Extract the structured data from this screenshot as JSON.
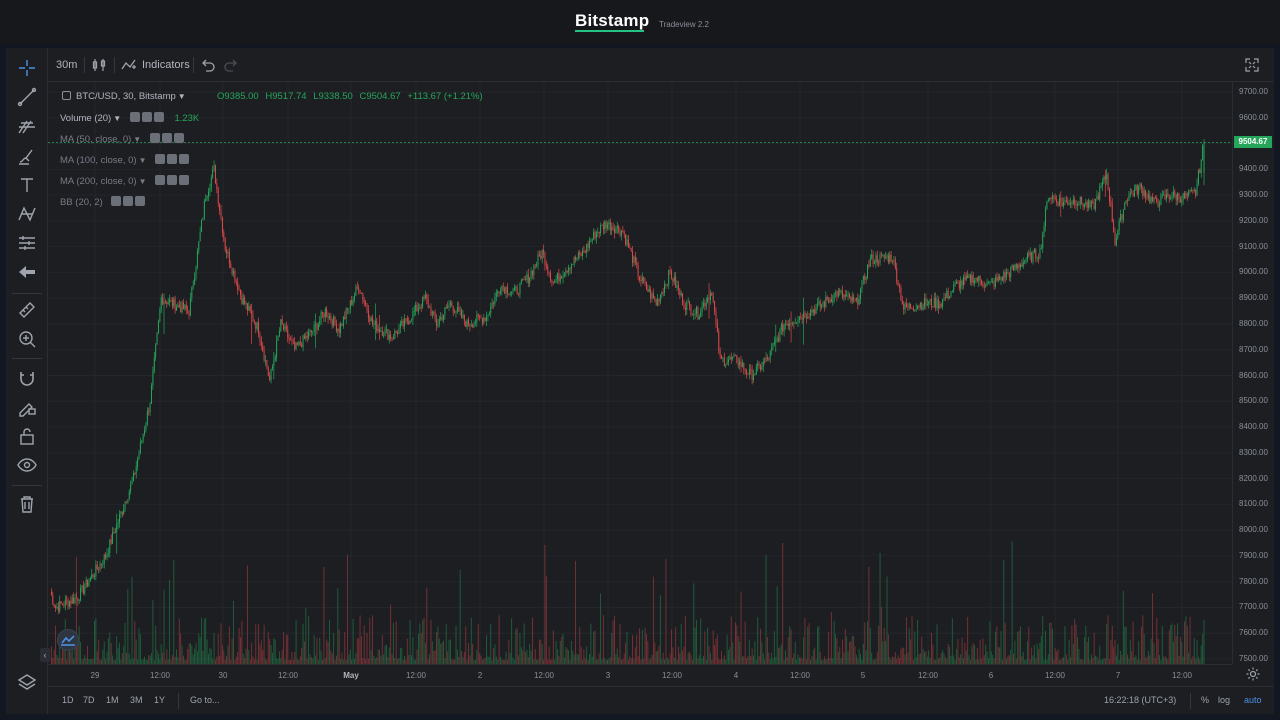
{
  "header": {
    "brand": "Bitstamp",
    "version": "Tradeview 2.2"
  },
  "toolbar": {
    "interval": "30m",
    "indicators_label": "Indicators"
  },
  "legend": {
    "symbol": "BTC/USD, 30, Bitstamp",
    "open": "O9385.00",
    "high": "H9517.74",
    "low": "L9338.50",
    "close": "C9504.67",
    "change": "+113.67 (+1.21%)",
    "volume_label": "Volume (20)",
    "volume_value": "1.23K",
    "ma50": "MA (50, close, 0)",
    "ma100": "MA (100, close, 0)",
    "ma200": "MA (200, close, 0)",
    "bb": "BB (20, 2)"
  },
  "price_axis": {
    "ticks": [
      "9700.00",
      "9600.00",
      "9500.00",
      "9400.00",
      "9300.00",
      "9200.00",
      "9100.00",
      "9000.00",
      "8900.00",
      "8800.00",
      "8700.00",
      "8600.00",
      "8500.00",
      "8400.00",
      "8300.00",
      "8200.00",
      "8100.00",
      "8000.00",
      "7900.00",
      "7800.00",
      "7700.00",
      "7600.00",
      "7500.00"
    ],
    "last_price": "9504.67"
  },
  "time_axis": {
    "labels": [
      "29",
      "12:00",
      "30",
      "12:00",
      "May",
      "12:00",
      "2",
      "12:00",
      "3",
      "12:00",
      "4",
      "12:00",
      "5",
      "12:00",
      "6",
      "12:00",
      "7",
      "12:00"
    ]
  },
  "bottom": {
    "ranges": [
      "1D",
      "7D",
      "1M",
      "3M",
      "1Y"
    ],
    "goto": "Go to...",
    "clock": "16:22:18 (UTC+3)",
    "percent": "%",
    "log": "log",
    "auto": "auto"
  },
  "colors": {
    "up": "#26a65b",
    "down": "#e0494b",
    "accent": "#4a90e2"
  },
  "chart_data": {
    "type": "candlestick",
    "title": "",
    "xlabel": "",
    "ylabel": "",
    "ylim": [
      7480,
      9740
    ],
    "key_points": [
      {
        "t": 0,
        "p": 7760
      },
      {
        "t": 4,
        "p": 7700
      },
      {
        "t": 20,
        "p": 7740
      },
      {
        "t": 40,
        "p": 7900
      },
      {
        "t": 60,
        "p": 8200
      },
      {
        "t": 72,
        "p": 8500
      },
      {
        "t": 80,
        "p": 8900
      },
      {
        "t": 100,
        "p": 8850
      },
      {
        "t": 112,
        "p": 9300
      },
      {
        "t": 118,
        "p": 9400
      },
      {
        "t": 126,
        "p": 9100
      },
      {
        "t": 138,
        "p": 8900
      },
      {
        "t": 150,
        "p": 8780
      },
      {
        "t": 158,
        "p": 8580
      },
      {
        "t": 166,
        "p": 8800
      },
      {
        "t": 176,
        "p": 8700
      },
      {
        "t": 190,
        "p": 8780
      },
      {
        "t": 198,
        "p": 8850
      },
      {
        "t": 208,
        "p": 8780
      },
      {
        "t": 222,
        "p": 8950
      },
      {
        "t": 232,
        "p": 8800
      },
      {
        "t": 246,
        "p": 8750
      },
      {
        "t": 258,
        "p": 8820
      },
      {
        "t": 270,
        "p": 8900
      },
      {
        "t": 278,
        "p": 8800
      },
      {
        "t": 288,
        "p": 8880
      },
      {
        "t": 300,
        "p": 8800
      },
      {
        "t": 314,
        "p": 8830
      },
      {
        "t": 324,
        "p": 8950
      },
      {
        "t": 334,
        "p": 8920
      },
      {
        "t": 344,
        "p": 8980
      },
      {
        "t": 354,
        "p": 9080
      },
      {
        "t": 362,
        "p": 8960
      },
      {
        "t": 372,
        "p": 9020
      },
      {
        "t": 384,
        "p": 9080
      },
      {
        "t": 392,
        "p": 9150
      },
      {
        "t": 400,
        "p": 9190
      },
      {
        "t": 412,
        "p": 9160
      },
      {
        "t": 424,
        "p": 8980
      },
      {
        "t": 436,
        "p": 8880
      },
      {
        "t": 446,
        "p": 9000
      },
      {
        "t": 456,
        "p": 8880
      },
      {
        "t": 466,
        "p": 8840
      },
      {
        "t": 476,
        "p": 8930
      },
      {
        "t": 482,
        "p": 8660
      },
      {
        "t": 494,
        "p": 8660
      },
      {
        "t": 504,
        "p": 8600
      },
      {
        "t": 516,
        "p": 8660
      },
      {
        "t": 528,
        "p": 8800
      },
      {
        "t": 540,
        "p": 8830
      },
      {
        "t": 554,
        "p": 8870
      },
      {
        "t": 566,
        "p": 8920
      },
      {
        "t": 580,
        "p": 8880
      },
      {
        "t": 590,
        "p": 9050
      },
      {
        "t": 606,
        "p": 9060
      },
      {
        "t": 614,
        "p": 8860
      },
      {
        "t": 628,
        "p": 8880
      },
      {
        "t": 640,
        "p": 8880
      },
      {
        "t": 652,
        "p": 8950
      },
      {
        "t": 664,
        "p": 8980
      },
      {
        "t": 676,
        "p": 8950
      },
      {
        "t": 690,
        "p": 9000
      },
      {
        "t": 702,
        "p": 9050
      },
      {
        "t": 712,
        "p": 9080
      },
      {
        "t": 718,
        "p": 9300
      },
      {
        "t": 728,
        "p": 9270
      },
      {
        "t": 738,
        "p": 9280
      },
      {
        "t": 750,
        "p": 9250
      },
      {
        "t": 760,
        "p": 9380
      },
      {
        "t": 766,
        "p": 9120
      },
      {
        "t": 774,
        "p": 9290
      },
      {
        "t": 784,
        "p": 9330
      },
      {
        "t": 794,
        "p": 9270
      },
      {
        "t": 806,
        "p": 9300
      },
      {
        "t": 816,
        "p": 9290
      },
      {
        "t": 824,
        "p": 9310
      },
      {
        "t": 830,
        "p": 9504.67
      }
    ],
    "last_candle": {
      "open": 9385.0,
      "high": 9517.74,
      "low": 9338.5,
      "close": 9504.67
    }
  }
}
